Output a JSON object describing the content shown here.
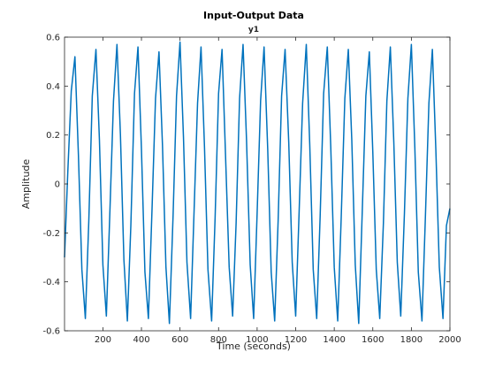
{
  "chart_data": {
    "type": "line",
    "title": "Input-Output Data",
    "subtitle": "y1",
    "xlabel": "Time (seconds)",
    "ylabel": "Amplitude",
    "xlim": [
      1,
      2000
    ],
    "ylim": [
      -0.6,
      0.6
    ],
    "x_ticks": [
      200,
      400,
      600,
      800,
      1000,
      1200,
      1400,
      1600,
      1800,
      2000
    ],
    "y_ticks": [
      -0.6,
      -0.4,
      -0.2,
      0,
      0.2,
      0.4,
      0.6
    ],
    "y_tick_labels": [
      "-0.6",
      "-0.4",
      "-0.2",
      "0",
      "0.2",
      "0.4",
      "0.6"
    ],
    "grid": false,
    "line_color": "#0072BD",
    "series": [
      {
        "name": "y1",
        "x": [
          1,
          18,
          36,
          55,
          73,
          91,
          109,
          127,
          145,
          164,
          182,
          200,
          218,
          236,
          255,
          273,
          291,
          309,
          327,
          345,
          364,
          382,
          400,
          418,
          436,
          455,
          473,
          491,
          509,
          527,
          545,
          564,
          582,
          600,
          618,
          636,
          655,
          673,
          691,
          709,
          727,
          745,
          764,
          782,
          800,
          818,
          836,
          855,
          873,
          891,
          909,
          927,
          945,
          964,
          982,
          1000,
          1018,
          1036,
          1055,
          1073,
          1091,
          1109,
          1127,
          1145,
          1164,
          1182,
          1200,
          1218,
          1236,
          1255,
          1273,
          1291,
          1309,
          1327,
          1345,
          1364,
          1382,
          1400,
          1418,
          1436,
          1455,
          1473,
          1491,
          1509,
          1527,
          1545,
          1564,
          1582,
          1600,
          1618,
          1636,
          1655,
          1673,
          1691,
          1709,
          1727,
          1745,
          1764,
          1782,
          1800,
          1818,
          1836,
          1855,
          1873,
          1891,
          1909,
          1927,
          1945,
          1964,
          1982,
          2000
        ],
        "y": [
          -0.3,
          0.05,
          0.38,
          0.52,
          0.12,
          -0.35,
          -0.55,
          -0.15,
          0.36,
          0.55,
          0.18,
          -0.33,
          -0.54,
          -0.12,
          0.34,
          0.57,
          0.2,
          -0.31,
          -0.56,
          -0.17,
          0.37,
          0.56,
          0.14,
          -0.36,
          -0.55,
          -0.1,
          0.35,
          0.54,
          0.16,
          -0.34,
          -0.57,
          -0.13,
          0.36,
          0.58,
          0.19,
          -0.32,
          -0.55,
          -0.11,
          0.33,
          0.56,
          0.15,
          -0.35,
          -0.56,
          -0.14,
          0.37,
          0.55,
          0.12,
          -0.34,
          -0.54,
          -0.16,
          0.35,
          0.57,
          0.18,
          -0.33,
          -0.55,
          -0.12,
          0.34,
          0.56,
          0.14,
          -0.36,
          -0.56,
          -0.15,
          0.36,
          0.55,
          0.17,
          -0.32,
          -0.54,
          -0.11,
          0.33,
          0.57,
          0.16,
          -0.35,
          -0.55,
          -0.13,
          0.37,
          0.56,
          0.15,
          -0.34,
          -0.56,
          -0.14,
          0.35,
          0.55,
          0.18,
          -0.33,
          -0.57,
          -0.12,
          0.36,
          0.54,
          0.13,
          -0.35,
          -0.55,
          -0.16,
          0.34,
          0.56,
          0.17,
          -0.32,
          -0.54,
          -0.12,
          0.35,
          0.57,
          0.15,
          -0.36,
          -0.56,
          -0.13,
          0.33,
          0.55,
          0.14,
          -0.34,
          -0.55,
          -0.17,
          -0.1
        ]
      }
    ]
  }
}
